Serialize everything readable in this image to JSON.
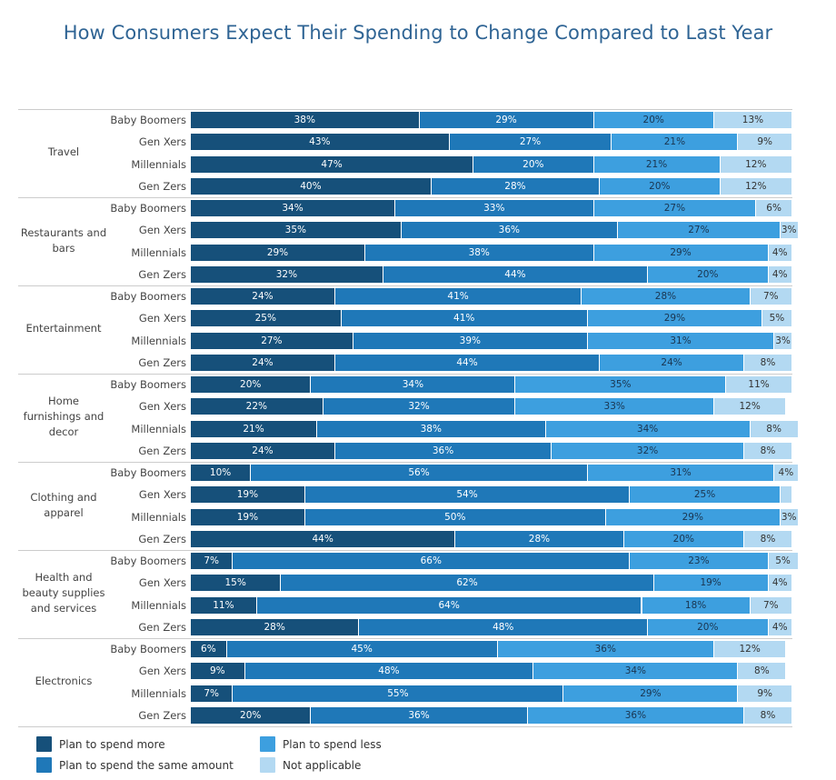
{
  "chart_data": {
    "type": "bar",
    "orientation": "horizontal",
    "stacked": true,
    "title": "How Consumers Expect Their Spending to Change Compared to Last Year",
    "unit": "%",
    "xlim": [
      0,
      100
    ],
    "legend_position": "bottom",
    "series": [
      {
        "name": "Plan to spend more",
        "color": "#16507a"
      },
      {
        "name": "Plan to spend the same amount",
        "color": "#1f78b8"
      },
      {
        "name": "Plan to spend less",
        "color": "#3d9fdf"
      },
      {
        "name": "Not applicable",
        "color": "#b3d9f2"
      }
    ],
    "categories": [
      {
        "name": "Travel",
        "rows": [
          {
            "group": "Baby Boomers",
            "values": [
              38,
              29,
              20,
              13
            ]
          },
          {
            "group": "Gen Xers",
            "values": [
              43,
              27,
              21,
              9
            ]
          },
          {
            "group": "Millennials",
            "values": [
              47,
              20,
              21,
              12
            ]
          },
          {
            "group": "Gen Zers",
            "values": [
              40,
              28,
              20,
              12
            ]
          }
        ]
      },
      {
        "name": "Restaurants and bars",
        "rows": [
          {
            "group": "Baby Boomers",
            "values": [
              34,
              33,
              27,
              6
            ]
          },
          {
            "group": "Gen Xers",
            "values": [
              35,
              36,
              27,
              3
            ]
          },
          {
            "group": "Millennials",
            "values": [
              29,
              38,
              29,
              4
            ]
          },
          {
            "group": "Gen Zers",
            "values": [
              32,
              44,
              20,
              4
            ]
          }
        ]
      },
      {
        "name": "Entertainment",
        "rows": [
          {
            "group": "Baby Boomers",
            "values": [
              24,
              41,
              28,
              7
            ]
          },
          {
            "group": "Gen Xers",
            "values": [
              25,
              41,
              29,
              5
            ]
          },
          {
            "group": "Millennials",
            "values": [
              27,
              39,
              31,
              3
            ]
          },
          {
            "group": "Gen Zers",
            "values": [
              24,
              44,
              24,
              8
            ]
          }
        ]
      },
      {
        "name": "Home furnishings and decor",
        "rows": [
          {
            "group": "Baby Boomers",
            "values": [
              20,
              34,
              35,
              11
            ]
          },
          {
            "group": "Gen Xers",
            "values": [
              22,
              32,
              33,
              12
            ]
          },
          {
            "group": "Millennials",
            "values": [
              21,
              38,
              34,
              8
            ]
          },
          {
            "group": "Gen Zers",
            "values": [
              24,
              36,
              32,
              8
            ]
          }
        ]
      },
      {
        "name": "Clothing and apparel",
        "rows": [
          {
            "group": "Baby Boomers",
            "values": [
              10,
              56,
              31,
              4
            ]
          },
          {
            "group": "Gen Xers",
            "values": [
              19,
              54,
              25,
              2
            ]
          },
          {
            "group": "Millennials",
            "values": [
              19,
              50,
              29,
              3
            ]
          },
          {
            "group": "Gen Zers",
            "values": [
              44,
              28,
              20,
              8
            ]
          }
        ]
      },
      {
        "name": "Health and beauty supplies and services",
        "rows": [
          {
            "group": "Baby Boomers",
            "values": [
              7,
              66,
              23,
              5
            ]
          },
          {
            "group": "Gen Xers",
            "values": [
              15,
              62,
              19,
              4
            ]
          },
          {
            "group": "Millennials",
            "values": [
              11,
              64,
              18,
              7
            ]
          },
          {
            "group": "Gen Zers",
            "values": [
              28,
              48,
              20,
              4
            ]
          }
        ]
      },
      {
        "name": "Electronics",
        "rows": [
          {
            "group": "Baby Boomers",
            "values": [
              6,
              45,
              36,
              12
            ]
          },
          {
            "group": "Gen Xers",
            "values": [
              9,
              48,
              34,
              8
            ]
          },
          {
            "group": "Millennials",
            "values": [
              7,
              55,
              29,
              9
            ]
          },
          {
            "group": "Gen Zers",
            "values": [
              20,
              36,
              36,
              8
            ]
          }
        ]
      }
    ]
  }
}
